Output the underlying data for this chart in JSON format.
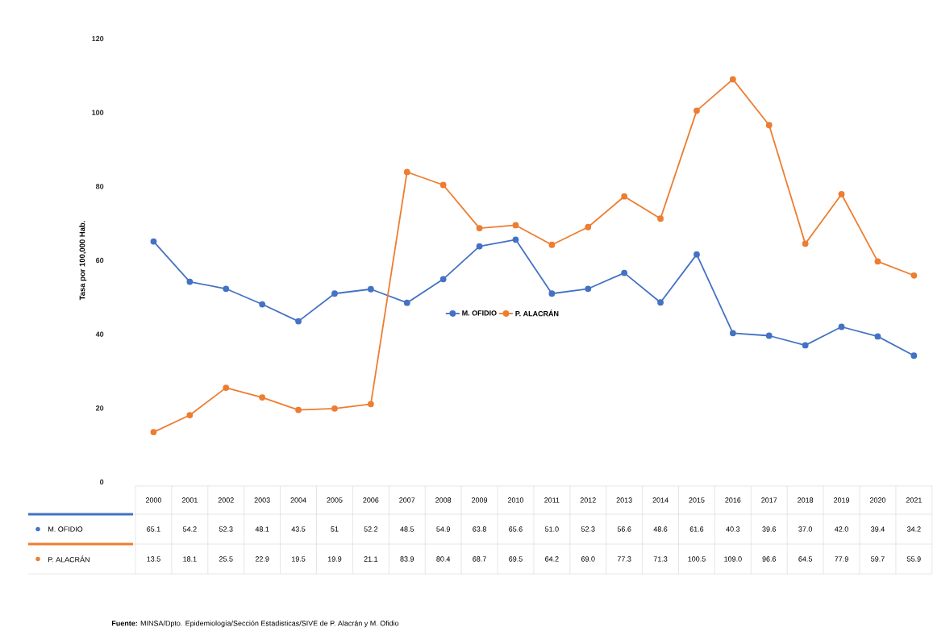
{
  "chart_data": {
    "type": "line",
    "ylabel": "Tasa por 100,000 Hab.",
    "categories": [
      "2000",
      "2001",
      "2002",
      "2003",
      "2004",
      "2005",
      "2006",
      "2007",
      "2008",
      "2009",
      "2010",
      "2011",
      "2012",
      "2013",
      "2014",
      "2015",
      "2016",
      "2017",
      "2018",
      "2019",
      "2020",
      "2021"
    ],
    "series": [
      {
        "name": "M. OFIDIO",
        "color": "#4472c4",
        "values": [
          65.1,
          54.2,
          52.3,
          48.1,
          43.5,
          51,
          52.2,
          48.5,
          54.9,
          63.8,
          65.6,
          51.0,
          52.3,
          56.6,
          48.6,
          61.6,
          40.3,
          39.6,
          37.0,
          42.0,
          39.4,
          34.2
        ],
        "value_labels": [
          "65.1",
          "54.2",
          "52.3",
          "48.1",
          "43.5",
          "51",
          "52.2",
          "48.5",
          "54.9",
          "63.8",
          "65.6",
          "51.0",
          "52.3",
          "56.6",
          "48.6",
          "61.6",
          "40.3",
          "39.6",
          "37.0",
          "42.0",
          "39.4",
          "34.2"
        ]
      },
      {
        "name": "P. ALACRÁN",
        "color": "#ed7d31",
        "values": [
          13.5,
          18.1,
          25.5,
          22.9,
          19.5,
          19.9,
          21.1,
          83.9,
          80.4,
          68.7,
          69.5,
          64.2,
          69.0,
          77.3,
          71.3,
          100.5,
          109.0,
          96.6,
          64.5,
          77.9,
          59.7,
          55.9
        ],
        "value_labels": [
          "13.5",
          "18.1",
          "25.5",
          "22.9",
          "19.5",
          "19.9",
          "21.1",
          "83.9",
          "80.4",
          "68.7",
          "69.5",
          "64.2",
          "69.0",
          "77.3",
          "71.3",
          "100.5",
          "109.0",
          "96.6",
          "64.5",
          "77.9",
          "59.7",
          "55.9"
        ]
      }
    ],
    "ylim": [
      0,
      120
    ],
    "yticks": [
      0,
      20,
      40,
      60,
      80,
      100,
      120
    ],
    "legend": "center",
    "marker": "circle",
    "line_style": "solid",
    "annotations": [
      "**Fuente:** MINSA/Dpto.  Epidemiología/Sección  Estadisticas/SIVE de  P. Alacrán  y M. Ofidio"
    ]
  }
}
